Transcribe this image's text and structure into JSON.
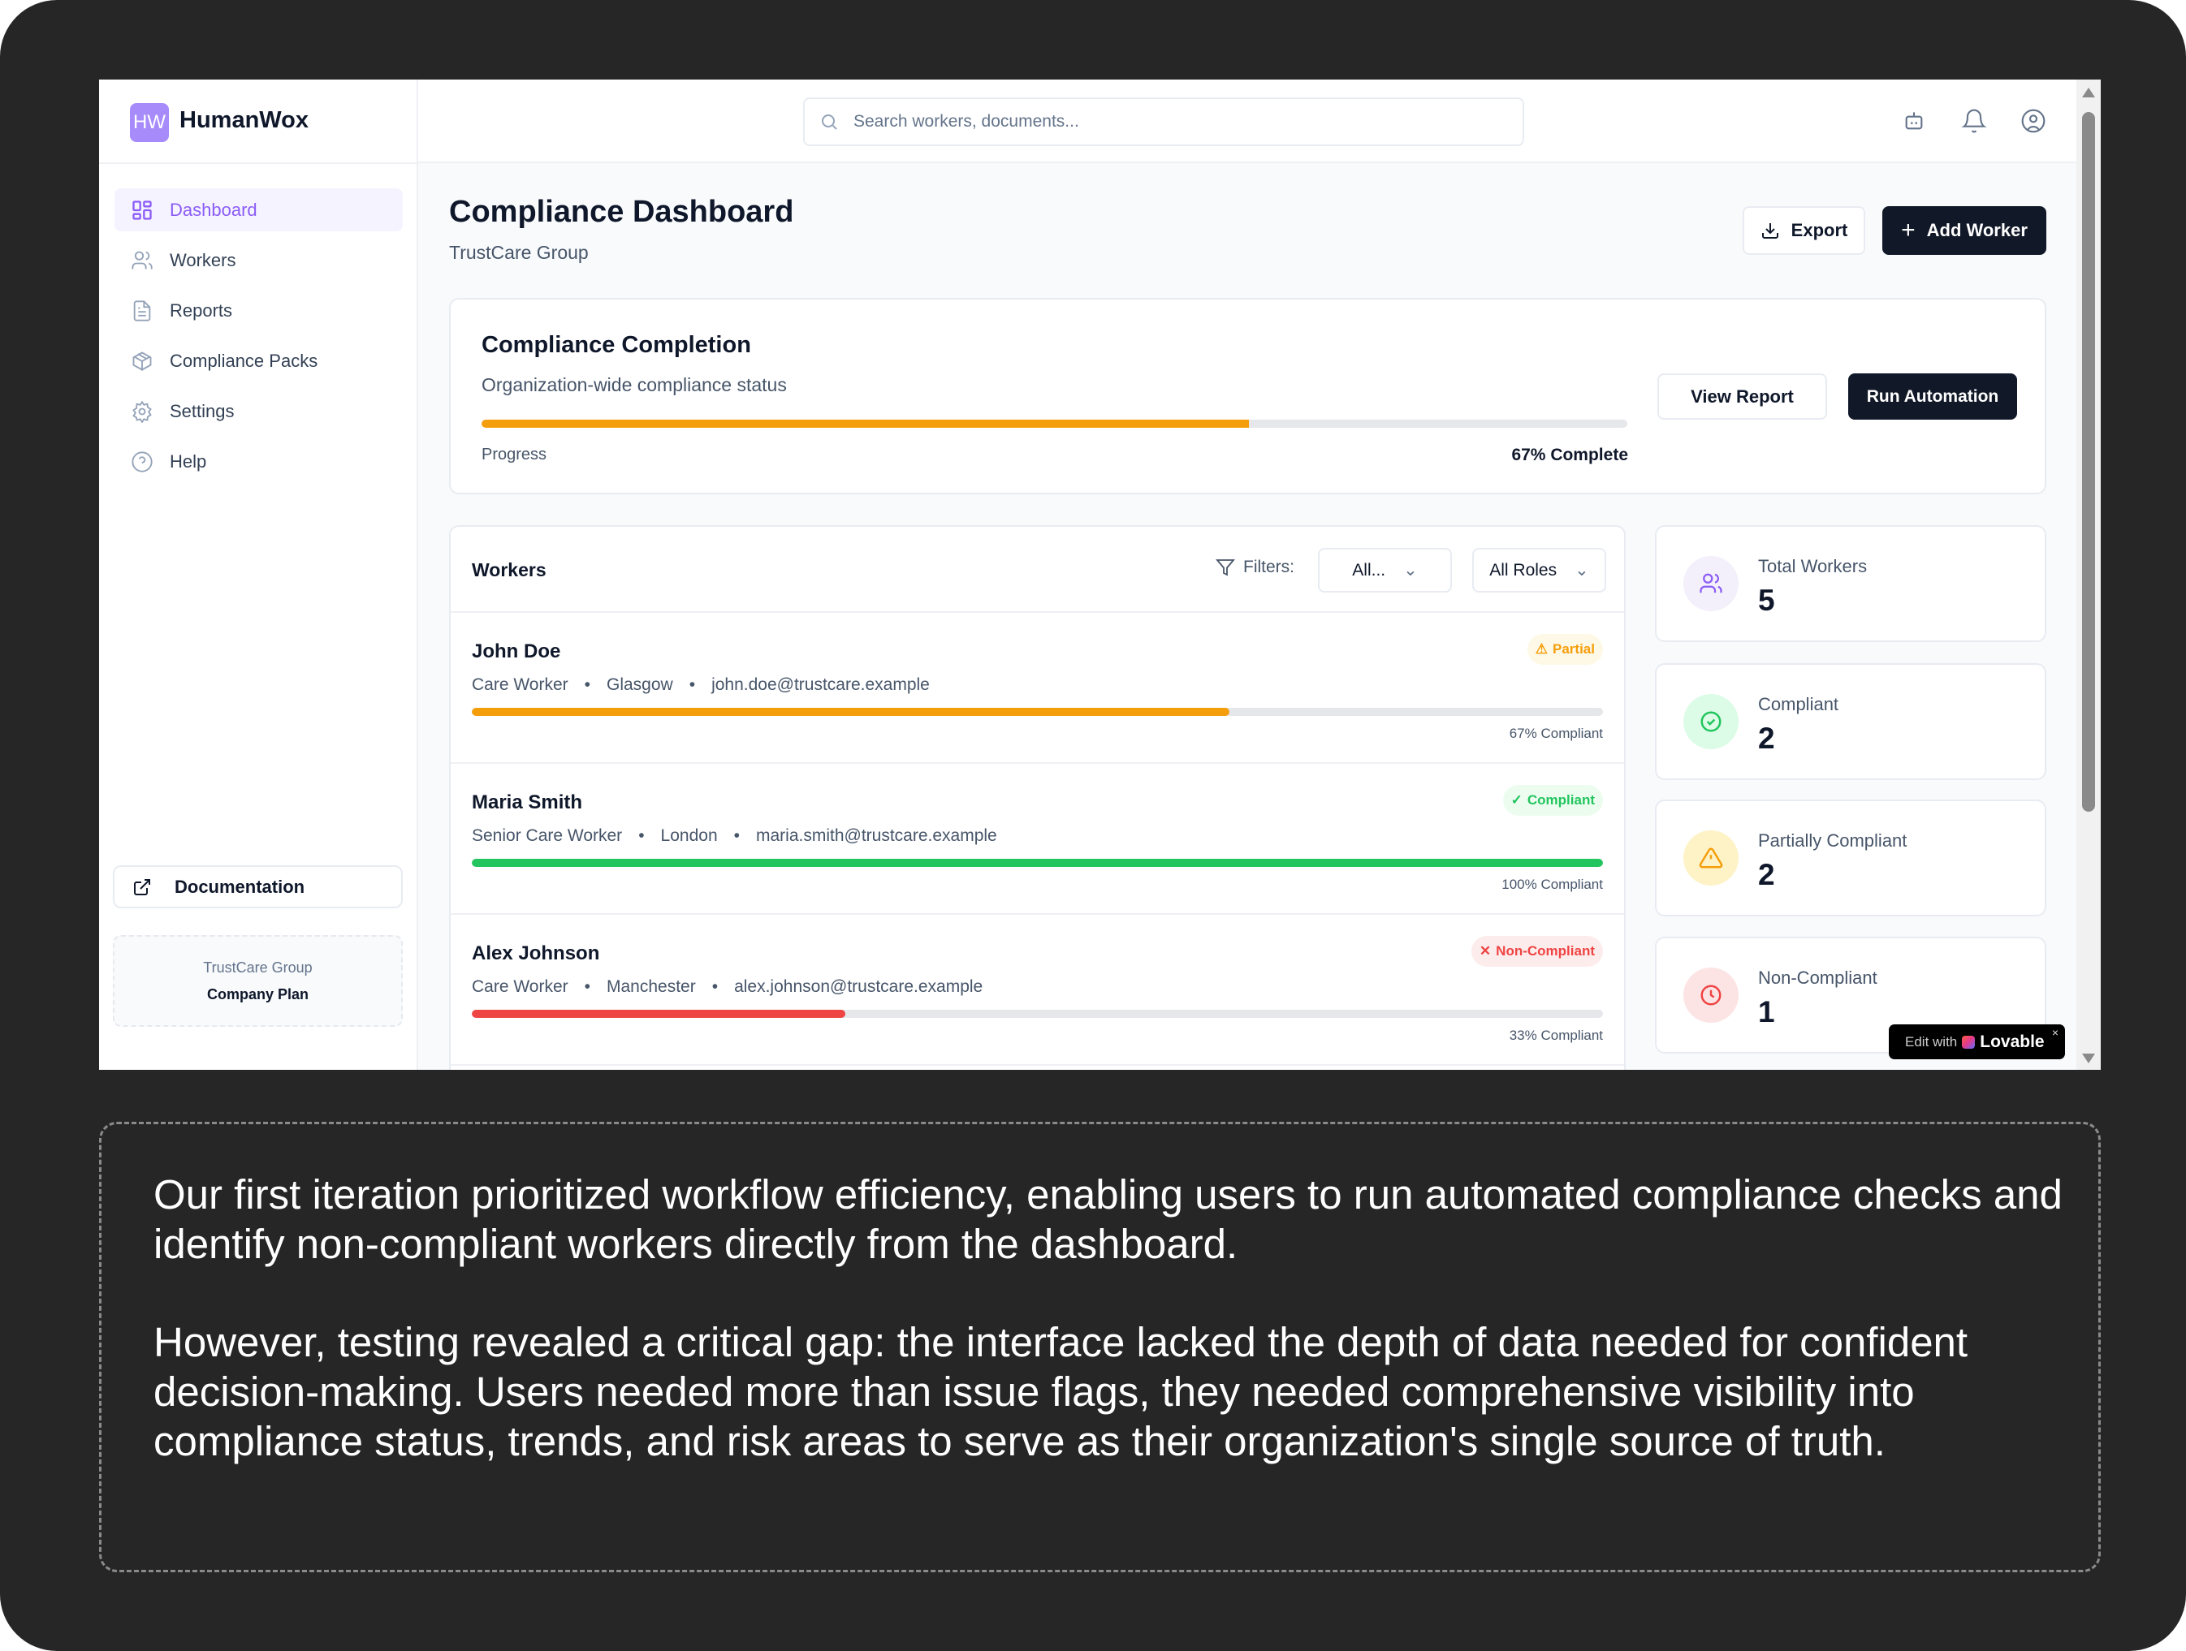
{
  "app": {
    "logo_initials": "HW",
    "name": "HumanWox"
  },
  "sidebar": {
    "items": [
      {
        "label": "Dashboard",
        "icon": "layout-grid-icon",
        "active": true
      },
      {
        "label": "Workers",
        "icon": "users-icon"
      },
      {
        "label": "Reports",
        "icon": "file-text-icon"
      },
      {
        "label": "Compliance Packs",
        "icon": "package-icon"
      },
      {
        "label": "Settings",
        "icon": "gear-icon"
      },
      {
        "label": "Help",
        "icon": "help-circle-icon"
      }
    ],
    "documentation_label": "Documentation",
    "plan": {
      "org": "TrustCare Group",
      "tier": "Company Plan"
    }
  },
  "header": {
    "search_placeholder": "Search workers, documents..."
  },
  "page": {
    "title": "Compliance Dashboard",
    "subtitle": "TrustCare Group",
    "export_label": "Export",
    "add_worker_label": "Add Worker"
  },
  "completion": {
    "title": "Compliance Completion",
    "subtitle": "Organization-wide compliance status",
    "progress_label": "Progress",
    "progress_value": 67,
    "progress_text": "67% Complete",
    "view_report_label": "View Report",
    "run_automation_label": "Run Automation"
  },
  "workers": {
    "title": "Workers",
    "filters_label": "Filters:",
    "status_filter": "All...",
    "role_filter": "All Roles",
    "rows": [
      {
        "name": "John Doe",
        "role": "Care Worker",
        "location": "Glasgow",
        "email": "john.doe@trustcare.example",
        "status": "Partial",
        "percent": 67,
        "percent_text": "67% Compliant"
      },
      {
        "name": "Maria Smith",
        "role": "Senior Care Worker",
        "location": "London",
        "email": "maria.smith@trustcare.example",
        "status": "Compliant",
        "percent": 100,
        "percent_text": "100% Compliant"
      },
      {
        "name": "Alex Johnson",
        "role": "Care Worker",
        "location": "Manchester",
        "email": "alex.johnson@trustcare.example",
        "status": "Non-Compliant",
        "percent": 33,
        "percent_text": "33% Compliant"
      }
    ]
  },
  "stats": [
    {
      "label": "Total Workers",
      "value": "5"
    },
    {
      "label": "Compliant",
      "value": "2"
    },
    {
      "label": "Partially Compliant",
      "value": "2"
    },
    {
      "label": "Non-Compliant",
      "value": "1"
    }
  ],
  "lovable": {
    "prefix": "Edit with",
    "brand": "Lovable",
    "close": "×"
  },
  "colors": {
    "accent": "#8b5cf6",
    "partial": "#f59e0b",
    "compliant": "#22c55e",
    "non_compliant": "#ef4444",
    "dark_button": "#111827"
  },
  "caption": {
    "p1": "Our first iteration prioritized workflow efficiency, enabling users to run automated compliance checks and identify non-compliant workers directly from the dashboard.",
    "p2": "However, testing revealed a critical gap: the interface lacked the depth of data needed for confident decision-making. Users needed more than issue flags, they needed comprehensive visibility into compliance status, trends, and risk areas to serve as their organization's single source of truth."
  }
}
